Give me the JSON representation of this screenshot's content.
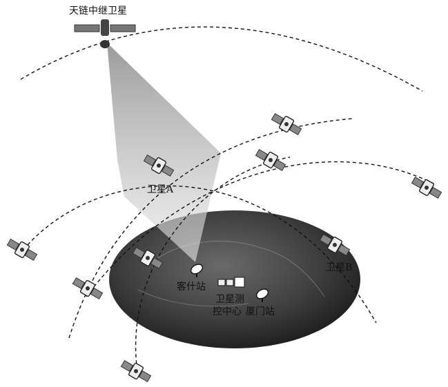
{
  "labels": {
    "relay": "天链中继卫星",
    "sat_a": "卫星A",
    "sat_b": "卫星B",
    "kashi": "客什站",
    "center": [
      "卫星测",
      "控中心"
    ],
    "xiamen": "厦门站"
  }
}
